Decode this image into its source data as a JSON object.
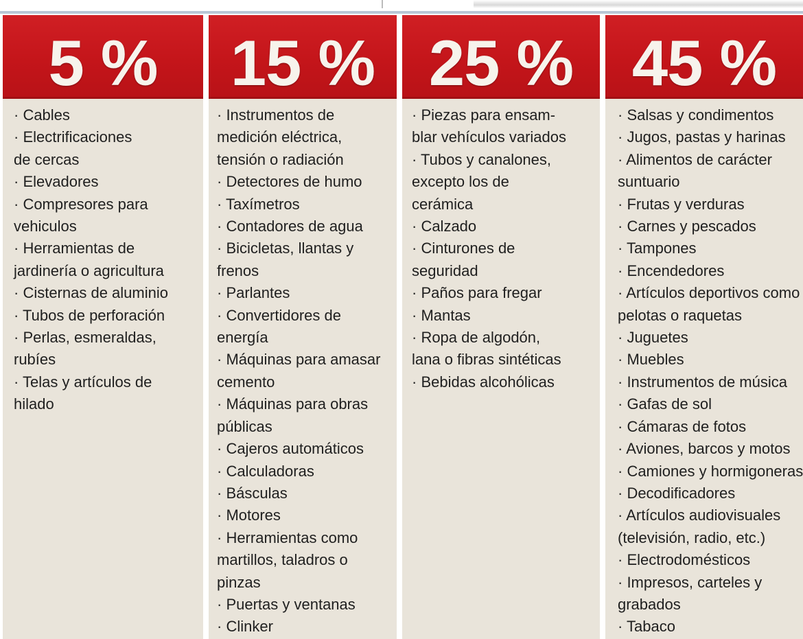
{
  "columns": [
    {
      "rate": "5 %",
      "items": [
        [
          "· Cables"
        ],
        [
          "· Electrificaciones",
          "de cercas"
        ],
        [
          "· Elevadores"
        ],
        [
          "· Compresores para",
          "vehiculos"
        ],
        [
          "· Herramientas de",
          "jardinería o agricultura"
        ],
        [
          "· Cisternas de aluminio"
        ],
        [
          "· Tubos de perforación"
        ],
        [
          "· Perlas, esmeraldas,",
          "rubíes"
        ],
        [
          "· Telas y artículos de",
          "hilado"
        ]
      ]
    },
    {
      "rate": "15 %",
      "items": [
        [
          "· Instrumentos de",
          "medición eléctrica,",
          "tensión o radiación"
        ],
        [
          "· Detectores de humo"
        ],
        [
          "· Taxímetros"
        ],
        [
          "· Contadores de agua"
        ],
        [
          "· Bicicletas, llantas y",
          "frenos"
        ],
        [
          "· Parlantes"
        ],
        [
          "· Convertidores de",
          "energía"
        ],
        [
          "· Máquinas para amasar",
          "cemento"
        ],
        [
          "· Máquinas para obras",
          "públicas"
        ],
        [
          "· Cajeros automáticos"
        ],
        [
          "· Calculadoras"
        ],
        [
          "· Básculas"
        ],
        [
          "· Motores"
        ],
        [
          "· Herramientas como",
          "martillos, taladros o",
          "pinzas"
        ],
        [
          "· Puertas y ventanas"
        ],
        [
          "· Clinker"
        ]
      ]
    },
    {
      "rate": "25 %",
      "items": [
        [
          "· Piezas para ensam-",
          "blar vehículos variados"
        ],
        [
          "· Tubos y canalones,",
          "excepto los de",
          "cerámica"
        ],
        [
          "· Calzado"
        ],
        [
          "· Cinturones de",
          "seguridad"
        ],
        [
          "· Paños para fregar"
        ],
        [
          "· Mantas"
        ],
        [
          "· Ropa de algodón,",
          "lana o fibras sintéticas"
        ],
        [
          "· Bebidas alcohólicas"
        ]
      ]
    },
    {
      "rate": "45 %",
      "items": [
        [
          "· Salsas y condimentos"
        ],
        [
          "· Jugos, pastas y harinas"
        ],
        [
          "· Alimentos de carácter",
          "suntuario"
        ],
        [
          "· Frutas y verduras"
        ],
        [
          "· Carnes y pescados"
        ],
        [
          "· Tampones"
        ],
        [
          "· Encendedores"
        ],
        [
          "· Artículos deportivos como",
          "pelotas o raquetas"
        ],
        [
          "· Juguetes"
        ],
        [
          "· Muebles"
        ],
        [
          "· Instrumentos de música"
        ],
        [
          "· Gafas de sol"
        ],
        [
          "· Cámaras de fotos"
        ],
        [
          "· Aviones, barcos y motos"
        ],
        [
          "· Camiones y hormigoneras"
        ],
        [
          "· Decodificadores"
        ],
        [
          "· Artículos audiovisuales",
          "(televisión, radio, etc.)"
        ],
        [
          "· Electrodomésticos"
        ],
        [
          "· Impresos, carteles y",
          "grabados"
        ],
        [
          "· Tabaco"
        ]
      ]
    }
  ],
  "colors": {
    "header_red": "#c4151a",
    "header_text": "#f7f3ec",
    "body_bg": "#e9e4da",
    "body_text": "#1f1f1f"
  }
}
